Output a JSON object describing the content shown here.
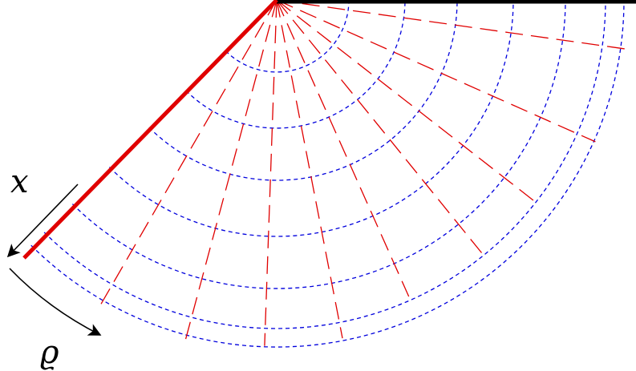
{
  "diagram": {
    "labels": {
      "x_axis": "x",
      "rho_axis": "ϱ"
    },
    "colors": {
      "wall": "#000000",
      "edge": "#e00000",
      "arcs": "#0000dd",
      "rays": "#e00000",
      "arrows": "#000000"
    },
    "arc_count": 7,
    "ray_count": 9
  }
}
